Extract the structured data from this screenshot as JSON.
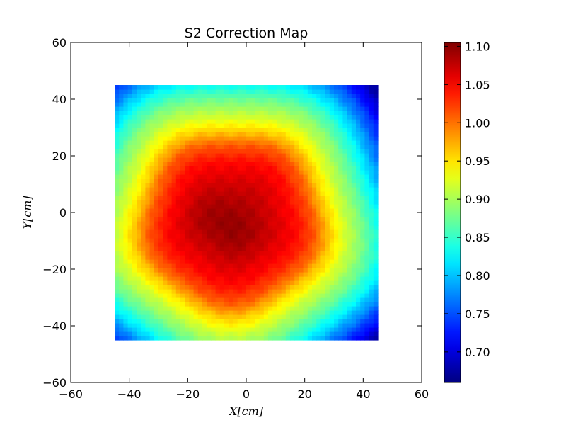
{
  "chart_data": {
    "type": "heatmap",
    "title": "S2 Correction Map",
    "xlabel": "X[cm]",
    "ylabel": "Y[cm]",
    "xlim": [
      -60,
      60
    ],
    "ylim": [
      -60,
      60
    ],
    "xticks": [
      -60,
      -40,
      -20,
      0,
      20,
      40,
      60
    ],
    "yticks": [
      -60,
      -40,
      -20,
      0,
      20,
      40,
      60
    ],
    "xtick_labels": [
      "−60",
      "−40",
      "−20",
      "0",
      "20",
      "40",
      "60"
    ],
    "ytick_labels": [
      "−60",
      "−40",
      "−20",
      "0",
      "20",
      "40",
      "60"
    ],
    "data_extent": {
      "x": [
        -45,
        45
      ],
      "y": [
        -45,
        45
      ]
    },
    "grid": false,
    "colormap": "jet",
    "colorbar": {
      "min": 0.66,
      "max": 1.105,
      "ticks": [
        0.7,
        0.75,
        0.8,
        0.85,
        0.9,
        0.95,
        1.0,
        1.05,
        1.1
      ],
      "tick_labels": [
        "0.70",
        "0.75",
        "0.80",
        "0.85",
        "0.90",
        "0.95",
        "1.00",
        "1.05",
        "1.10"
      ]
    },
    "field_model": {
      "center": [
        -5,
        -3
      ],
      "peak_value": 1.09,
      "radius_falloff": [
        [
          0,
          1.09
        ],
        [
          8,
          1.08
        ],
        [
          15,
          1.065
        ],
        [
          22,
          1.045
        ],
        [
          28,
          1.01
        ],
        [
          33,
          0.96
        ],
        [
          38,
          0.92
        ],
        [
          44,
          0.88
        ],
        [
          50,
          0.83
        ],
        [
          57,
          0.76
        ],
        [
          65,
          0.68
        ]
      ],
      "local_maxima": [
        {
          "x": -15,
          "y": 0,
          "value": 1.1
        },
        {
          "x": -3,
          "y": -9,
          "value": 1.1
        }
      ]
    }
  }
}
